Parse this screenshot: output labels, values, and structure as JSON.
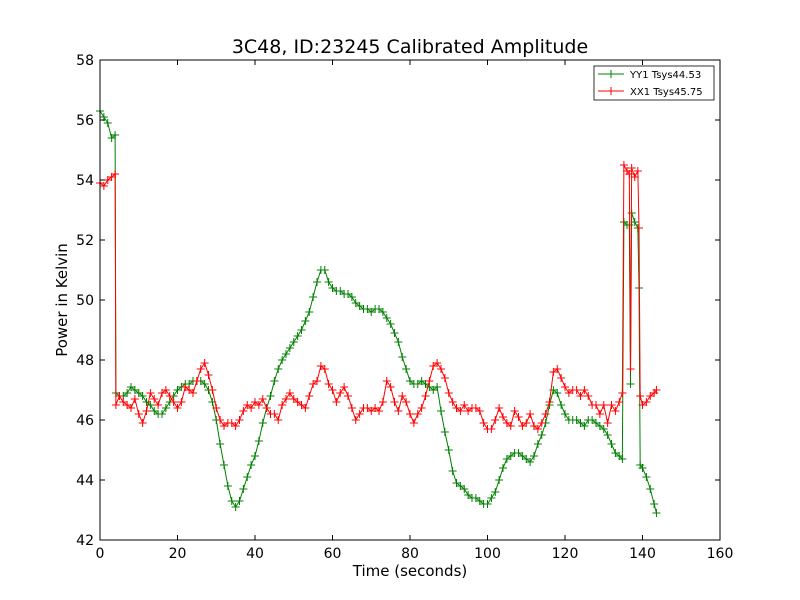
{
  "chart_data": {
    "type": "line",
    "title": "3C48, ID:23245 Calibrated Amplitude",
    "xlabel": "Time (seconds)",
    "ylabel": "Power in Kelvin",
    "xlim": [
      0,
      160
    ],
    "ylim": [
      42,
      58
    ],
    "xticks": [
      "0",
      "20",
      "40",
      "60",
      "80",
      "100",
      "120",
      "140",
      "160"
    ],
    "yticks": [
      "42",
      "44",
      "46",
      "48",
      "50",
      "52",
      "54",
      "56",
      "58"
    ],
    "grid": false,
    "legend": {
      "placement": "top-right"
    },
    "series": [
      {
        "name": "YY1 Tsys44.53",
        "color": "#008000",
        "marker": "+",
        "points": [
          [
            0,
            56.3
          ],
          [
            1,
            56.1
          ],
          [
            2,
            55.9
          ],
          [
            3,
            55.4
          ],
          [
            3.9,
            55.5
          ],
          [
            4.1,
            46.9
          ],
          [
            5,
            46.8
          ],
          [
            6,
            46.8
          ],
          [
            7,
            46.9
          ],
          [
            8,
            47.1
          ],
          [
            9,
            47.0
          ],
          [
            10,
            46.9
          ],
          [
            11,
            46.8
          ],
          [
            12,
            46.6
          ],
          [
            13,
            46.5
          ],
          [
            14,
            46.3
          ],
          [
            15,
            46.2
          ],
          [
            16,
            46.2
          ],
          [
            17,
            46.4
          ],
          [
            18,
            46.6
          ],
          [
            19,
            46.8
          ],
          [
            20,
            47.0
          ],
          [
            21,
            47.1
          ],
          [
            22,
            47.2
          ],
          [
            23,
            47.2
          ],
          [
            24,
            47.3
          ],
          [
            25,
            47.3
          ],
          [
            26,
            47.3
          ],
          [
            27,
            47.2
          ],
          [
            28,
            47.0
          ],
          [
            29,
            46.6
          ],
          [
            30,
            46.0
          ],
          [
            31,
            45.2
          ],
          [
            32,
            44.5
          ],
          [
            33,
            43.8
          ],
          [
            34,
            43.3
          ],
          [
            35,
            43.1
          ],
          [
            36,
            43.3
          ],
          [
            37,
            43.7
          ],
          [
            38,
            44.1
          ],
          [
            39,
            44.5
          ],
          [
            40,
            44.8
          ],
          [
            41,
            45.3
          ],
          [
            42,
            45.9
          ],
          [
            43,
            46.4
          ],
          [
            44,
            46.8
          ],
          [
            45,
            47.3
          ],
          [
            46,
            47.7
          ],
          [
            47,
            48.0
          ],
          [
            48,
            48.2
          ],
          [
            49,
            48.4
          ],
          [
            50,
            48.6
          ],
          [
            51,
            48.8
          ],
          [
            52,
            49.0
          ],
          [
            53,
            49.3
          ],
          [
            54,
            49.6
          ],
          [
            55,
            50.1
          ],
          [
            56,
            50.6
          ],
          [
            57,
            51.0
          ],
          [
            58,
            51.0
          ],
          [
            59,
            50.6
          ],
          [
            60,
            50.4
          ],
          [
            61,
            50.3
          ],
          [
            62,
            50.3
          ],
          [
            63,
            50.2
          ],
          [
            64,
            50.2
          ],
          [
            65,
            50.1
          ],
          [
            66,
            49.9
          ],
          [
            67,
            49.8
          ],
          [
            68,
            49.7
          ],
          [
            69,
            49.7
          ],
          [
            70,
            49.6
          ],
          [
            71,
            49.7
          ],
          [
            72,
            49.7
          ],
          [
            73,
            49.6
          ],
          [
            74,
            49.4
          ],
          [
            75,
            49.2
          ],
          [
            76,
            48.9
          ],
          [
            77,
            48.6
          ],
          [
            78,
            48.1
          ],
          [
            79,
            47.7
          ],
          [
            80,
            47.3
          ],
          [
            81,
            47.2
          ],
          [
            82,
            47.2
          ],
          [
            83,
            47.3
          ],
          [
            84,
            47.2
          ],
          [
            85,
            47.1
          ],
          [
            86,
            47.0
          ],
          [
            87,
            47.1
          ],
          [
            88,
            46.3
          ],
          [
            89,
            45.6
          ],
          [
            90,
            45.0
          ],
          [
            91,
            44.3
          ],
          [
            92,
            43.9
          ],
          [
            93,
            43.8
          ],
          [
            94,
            43.7
          ],
          [
            95,
            43.5
          ],
          [
            96,
            43.4
          ],
          [
            97,
            43.4
          ],
          [
            98,
            43.3
          ],
          [
            99,
            43.2
          ],
          [
            100,
            43.2
          ],
          [
            101,
            43.4
          ],
          [
            102,
            43.6
          ],
          [
            103,
            44.0
          ],
          [
            104,
            44.4
          ],
          [
            105,
            44.7
          ],
          [
            106,
            44.8
          ],
          [
            107,
            44.9
          ],
          [
            108,
            44.9
          ],
          [
            109,
            44.8
          ],
          [
            110,
            44.7
          ],
          [
            111,
            44.6
          ],
          [
            112,
            44.8
          ],
          [
            113,
            45.2
          ],
          [
            114,
            45.5
          ],
          [
            115,
            45.9
          ],
          [
            116,
            46.5
          ],
          [
            117,
            47.0
          ],
          [
            118,
            46.9
          ],
          [
            119,
            46.5
          ],
          [
            120,
            46.2
          ],
          [
            121,
            46.0
          ],
          [
            122,
            46.0
          ],
          [
            123,
            46.0
          ],
          [
            124,
            45.9
          ],
          [
            125,
            45.8
          ],
          [
            126,
            46.0
          ],
          [
            127,
            46.0
          ],
          [
            128,
            45.9
          ],
          [
            129,
            45.8
          ],
          [
            130,
            45.7
          ],
          [
            131,
            45.5
          ],
          [
            132,
            45.2
          ],
          [
            133,
            44.9
          ],
          [
            134,
            44.8
          ],
          [
            134.8,
            44.7
          ],
          [
            135.2,
            52.6
          ],
          [
            136,
            52.5
          ],
          [
            136.6,
            52.5
          ],
          [
            136.9,
            47.2
          ],
          [
            137.2,
            52.9
          ],
          [
            138,
            52.6
          ],
          [
            138.8,
            52.4
          ],
          [
            139.1,
            50.4
          ],
          [
            139.4,
            44.5
          ],
          [
            140,
            44.4
          ],
          [
            141,
            44.1
          ],
          [
            142,
            43.7
          ],
          [
            143,
            43.2
          ],
          [
            143.6,
            42.9
          ]
        ]
      },
      {
        "name": "XX1 Tsys45.75",
        "color": "#ff0000",
        "marker": "+",
        "points": [
          [
            0,
            53.9
          ],
          [
            1,
            53.8
          ],
          [
            2,
            54.0
          ],
          [
            3,
            54.1
          ],
          [
            3.9,
            54.2
          ],
          [
            4.1,
            46.5
          ],
          [
            5,
            46.8
          ],
          [
            6,
            46.6
          ],
          [
            7,
            46.5
          ],
          [
            8,
            46.4
          ],
          [
            9,
            46.7
          ],
          [
            10,
            46.2
          ],
          [
            11,
            45.9
          ],
          [
            12,
            46.3
          ],
          [
            13,
            46.9
          ],
          [
            14,
            46.7
          ],
          [
            15,
            46.5
          ],
          [
            16,
            46.9
          ],
          [
            17,
            47.0
          ],
          [
            18,
            46.8
          ],
          [
            19,
            46.6
          ],
          [
            20,
            46.4
          ],
          [
            21,
            46.6
          ],
          [
            22,
            47.1
          ],
          [
            23,
            47.0
          ],
          [
            24,
            46.9
          ],
          [
            25,
            47.3
          ],
          [
            26,
            47.7
          ],
          [
            27,
            47.9
          ],
          [
            28,
            47.5
          ],
          [
            29,
            47.0
          ],
          [
            30,
            46.4
          ],
          [
            31,
            46.0
          ],
          [
            32,
            45.8
          ],
          [
            33,
            45.9
          ],
          [
            34,
            45.9
          ],
          [
            35,
            45.8
          ],
          [
            36,
            46.0
          ],
          [
            37,
            46.3
          ],
          [
            38,
            46.5
          ],
          [
            39,
            46.4
          ],
          [
            40,
            46.6
          ],
          [
            41,
            46.5
          ],
          [
            42,
            46.7
          ],
          [
            43,
            46.4
          ],
          [
            44,
            46.2
          ],
          [
            45,
            46.2
          ],
          [
            46,
            46.0
          ],
          [
            47,
            46.5
          ],
          [
            48,
            46.7
          ],
          [
            49,
            46.9
          ],
          [
            50,
            46.7
          ],
          [
            51,
            46.6
          ],
          [
            52,
            46.5
          ],
          [
            53,
            46.4
          ],
          [
            54,
            46.8
          ],
          [
            55,
            47.2
          ],
          [
            56,
            47.3
          ],
          [
            57,
            47.8
          ],
          [
            58,
            47.7
          ],
          [
            59,
            47.2
          ],
          [
            60,
            47.0
          ],
          [
            61,
            46.6
          ],
          [
            62,
            46.9
          ],
          [
            63,
            47.1
          ],
          [
            64,
            46.8
          ],
          [
            65,
            46.4
          ],
          [
            66,
            46.0
          ],
          [
            67,
            46.2
          ],
          [
            68,
            46.4
          ],
          [
            69,
            46.4
          ],
          [
            70,
            46.3
          ],
          [
            71,
            46.4
          ],
          [
            72,
            46.3
          ],
          [
            73,
            46.6
          ],
          [
            74,
            47.3
          ],
          [
            75,
            47.1
          ],
          [
            76,
            46.6
          ],
          [
            77,
            46.3
          ],
          [
            78,
            46.8
          ],
          [
            79,
            46.6
          ],
          [
            80,
            46.2
          ],
          [
            81,
            45.9
          ],
          [
            82,
            46.2
          ],
          [
            83,
            46.4
          ],
          [
            84,
            46.8
          ],
          [
            85,
            47.3
          ],
          [
            86,
            47.8
          ],
          [
            87,
            47.9
          ],
          [
            88,
            47.7
          ],
          [
            89,
            47.4
          ],
          [
            90,
            46.9
          ],
          [
            91,
            46.6
          ],
          [
            92,
            46.4
          ],
          [
            93,
            46.3
          ],
          [
            94,
            46.5
          ],
          [
            95,
            46.3
          ],
          [
            96,
            46.4
          ],
          [
            97,
            46.4
          ],
          [
            98,
            46.3
          ],
          [
            99,
            45.9
          ],
          [
            100,
            45.7
          ],
          [
            101,
            45.7
          ],
          [
            102,
            46.0
          ],
          [
            103,
            46.4
          ],
          [
            104,
            46.1
          ],
          [
            105,
            45.9
          ],
          [
            106,
            45.8
          ],
          [
            107,
            46.3
          ],
          [
            108,
            46.1
          ],
          [
            109,
            45.8
          ],
          [
            110,
            45.9
          ],
          [
            111,
            46.2
          ],
          [
            112,
            45.8
          ],
          [
            113,
            45.7
          ],
          [
            114,
            45.9
          ],
          [
            115,
            46.2
          ],
          [
            116,
            46.6
          ],
          [
            117,
            47.6
          ],
          [
            118,
            47.7
          ],
          [
            119,
            47.4
          ],
          [
            120,
            47.1
          ],
          [
            121,
            46.9
          ],
          [
            122,
            47.0
          ],
          [
            123,
            47.0
          ],
          [
            124,
            46.8
          ],
          [
            125,
            47.0
          ],
          [
            126,
            46.8
          ],
          [
            127,
            46.5
          ],
          [
            128,
            46.5
          ],
          [
            129,
            46.2
          ],
          [
            130,
            46.5
          ],
          [
            131,
            45.9
          ],
          [
            132,
            46.5
          ],
          [
            133,
            46.3
          ],
          [
            134,
            46.6
          ],
          [
            134.8,
            46.9
          ],
          [
            135.2,
            54.5
          ],
          [
            136,
            54.3
          ],
          [
            136.6,
            54.2
          ],
          [
            136.9,
            47.7
          ],
          [
            137.2,
            54.4
          ],
          [
            138,
            54.1
          ],
          [
            138.8,
            54.3
          ],
          [
            139.1,
            52.4
          ],
          [
            139.4,
            46.8
          ],
          [
            140,
            46.5
          ],
          [
            141,
            46.6
          ],
          [
            142,
            46.8
          ],
          [
            143,
            46.9
          ],
          [
            143.6,
            47.0
          ]
        ]
      }
    ]
  }
}
